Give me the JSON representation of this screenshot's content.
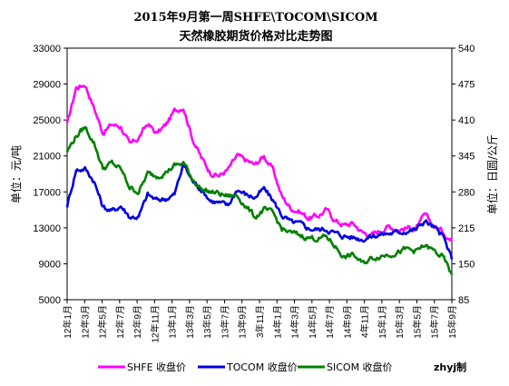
{
  "chart_data": {
    "type": "line",
    "title": "2015年9月第一周SHFE\\TOCOM\\SICOM",
    "subtitle": "天然橡胶期货价格对比走势图",
    "ylabel_left": "单位：元/吨",
    "ylabel_right": "单位：日圆/公斤",
    "ylim_left": [
      5000,
      33000
    ],
    "ylim_right": [
      85,
      540
    ],
    "yticks_left": [
      "33000",
      "29000",
      "25000",
      "21000",
      "17000",
      "13000",
      "9000",
      "5000"
    ],
    "yticks_right": [
      "540",
      "475",
      "410",
      "345",
      "280",
      "215",
      "150",
      "85"
    ],
    "xticks": [
      "12年1月",
      "12年3月",
      "12年5月",
      "12年7月",
      "12年9月",
      "12年11月",
      "13年1月",
      "13年3月",
      "13年5月",
      "13年7月",
      "13年9月",
      "13年11月",
      "14年1月",
      "14年3月",
      "14年5月",
      "14年7月",
      "14年9月",
      "14年11月",
      "15年1月",
      "15年3月",
      "15年5月",
      "15年7月",
      "15年9月"
    ],
    "xticks_display": [
      "12年1月",
      "12年3月",
      "12年5月",
      "12年7月",
      "12年9月",
      "12年11月",
      "13年1月",
      "13年3月",
      "13年5月",
      "13年7月",
      "13年9月",
      "3年11月",
      "14年1月",
      "14年3月",
      "14年5月",
      "14年7月",
      "14年9月",
      "4年11月",
      "15年1月",
      "15年3月",
      "15年5月",
      "15年7月",
      "15年9月"
    ],
    "series": [
      {
        "name": "SHFE 收盘价",
        "axis": "left",
        "color": "#ff00ff",
        "values": [
          24500,
          28600,
          29000,
          26400,
          23600,
          24500,
          24300,
          22200,
          23000,
          24600,
          23500,
          24400,
          26000,
          26500,
          23000,
          20800,
          19200,
          18800,
          19500,
          21000,
          20500,
          20000,
          21000,
          19500,
          16500,
          15200,
          14800,
          14100,
          14300,
          15000,
          13800,
          13300,
          13500,
          12500,
          12200,
          12700,
          13200,
          12800,
          13000,
          12900,
          14400,
          13200,
          12600,
          11500
        ]
      },
      {
        "name": "TOCOM 收盘价",
        "axis": "right",
        "color": "#0000e0",
        "values": [
          255,
          320,
          322,
          300,
          253,
          245,
          255,
          235,
          235,
          275,
          265,
          268,
          275,
          330,
          300,
          285,
          265,
          260,
          255,
          285,
          275,
          270,
          285,
          265,
          238,
          225,
          222,
          214,
          212,
          213,
          205,
          200,
          198,
          195,
          200,
          203,
          205,
          207,
          210,
          212,
          228,
          215,
          200,
          158
        ]
      },
      {
        "name": "SICOM 收盘价",
        "axis": "left",
        "color": "#008000",
        "values": [
          21500,
          23200,
          24200,
          22500,
          19600,
          20200,
          19500,
          17500,
          17000,
          19000,
          18800,
          19200,
          19900,
          20200,
          18500,
          17300,
          17000,
          16800,
          16500,
          16600,
          15400,
          14200,
          15000,
          14600,
          12900,
          12400,
          12200,
          11900,
          11800,
          12000,
          10900,
          9700,
          10000,
          9000,
          9600,
          9900,
          10100,
          10300,
          10600,
          10400,
          11000,
          10400,
          9700,
          7800
        ]
      }
    ],
    "legend_position": "bottom",
    "grid": false
  },
  "credit": "zhyj制"
}
